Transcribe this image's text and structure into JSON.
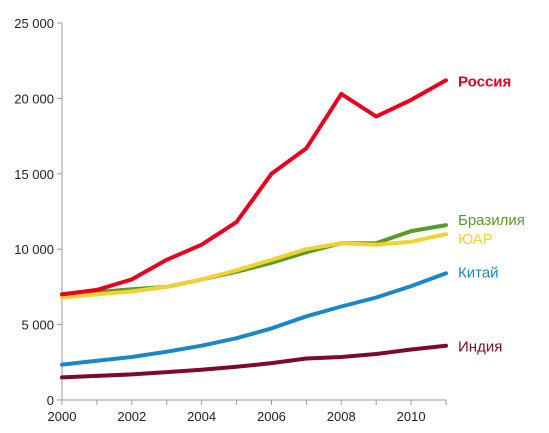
{
  "chart_data": {
    "type": "line",
    "title": "",
    "xlabel": "",
    "ylabel": "",
    "x": [
      2000,
      2001,
      2002,
      2003,
      2004,
      2005,
      2006,
      2007,
      2008,
      2009,
      2010,
      2011
    ],
    "xlim": [
      2000,
      2011
    ],
    "ylim": [
      0,
      25000
    ],
    "x_ticks": [
      "2000",
      "2002",
      "2004",
      "2006",
      "2008",
      "2010"
    ],
    "y_ticks": [
      "0",
      "5 000",
      "10 000",
      "15 000",
      "20 000",
      "25 000"
    ],
    "grid": false,
    "legend": "direct labels at right end of lines",
    "series": [
      {
        "name": "Россия",
        "color": "#e8001c",
        "bold": true,
        "values": [
          7000,
          7300,
          8000,
          9300,
          10300,
          11800,
          15000,
          16700,
          20300,
          18800,
          19900,
          21200
        ]
      },
      {
        "name": "Бразилия",
        "color": "#5a9a28",
        "bold": false,
        "values": [
          7000,
          7150,
          7350,
          7500,
          8000,
          8500,
          9100,
          9800,
          10400,
          10400,
          11200,
          11600
        ]
      },
      {
        "name": "ЮАР",
        "color": "#f2d230",
        "bold": false,
        "values": [
          6800,
          7000,
          7200,
          7500,
          8000,
          8600,
          9300,
          10000,
          10400,
          10300,
          10500,
          11000
        ]
      },
      {
        "name": "Китай",
        "color": "#1b87c9",
        "bold": false,
        "values": [
          2350,
          2600,
          2850,
          3200,
          3600,
          4100,
          4750,
          5550,
          6200,
          6800,
          7550,
          8400
        ]
      },
      {
        "name": "Индия",
        "color": "#7a0a2e",
        "bold": false,
        "values": [
          1500,
          1600,
          1700,
          1850,
          2000,
          2200,
          2450,
          2750,
          2850,
          3050,
          3350,
          3600
        ]
      }
    ]
  }
}
